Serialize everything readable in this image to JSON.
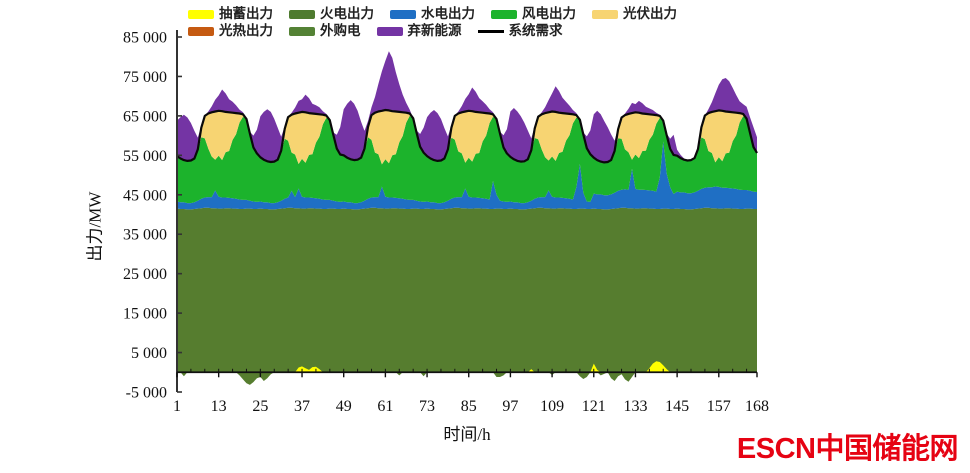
{
  "axis": {
    "y_title": "出力/MW",
    "x_title": "时间/h"
  },
  "logo": {
    "text": "ESCN中国储能网",
    "color": "#e60313"
  },
  "legend": {
    "rows": [
      [
        {
          "label": "抽蓄出力",
          "color": "#ffff00",
          "type": "box"
        },
        {
          "label": "火电出力",
          "color": "#4e7b2f",
          "type": "box"
        },
        {
          "label": "水电出力",
          "color": "#1f6fc4",
          "type": "box"
        },
        {
          "label": "风电出力",
          "color": "#1cb32c",
          "type": "box"
        },
        {
          "label": "光伏出力",
          "color": "#f7d472",
          "type": "box"
        }
      ],
      [
        {
          "label": "光热出力",
          "color": "#c55a11",
          "type": "box"
        },
        {
          "label": "外购电",
          "color": "#548235",
          "type": "box"
        },
        {
          "label": "弃新能源",
          "color": "#7434a4",
          "type": "box"
        },
        {
          "label": "系统需求",
          "color": "#000000",
          "type": "line"
        }
      ]
    ]
  },
  "chart_data": {
    "type": "area",
    "subtype": "stacked-area-hourly",
    "title": "",
    "xlabel": "时间/h",
    "ylabel": "出力/MW",
    "x_hours": "1 to 168 hourly (7 days)",
    "xlim": [
      1,
      168
    ],
    "ylim": [
      -5000,
      85000
    ],
    "grid": false,
    "legend_position": "top",
    "colors": {
      "thermal_purchased": "#567d2f",
      "hydro": "#1f6fc4",
      "wind": "#1cb32c",
      "pv": "#f7d472",
      "curtailed": "#7434a4",
      "pumped": "#ffff00",
      "demand_line": "#0a0a0a"
    },
    "y_ticks": [
      {
        "value": 85000,
        "label": "85 000"
      },
      {
        "value": 75000,
        "label": "75 000"
      },
      {
        "value": 65000,
        "label": "65 000"
      },
      {
        "value": 55000,
        "label": "55 000"
      },
      {
        "value": 45000,
        "label": "45 000"
      },
      {
        "value": 35000,
        "label": "35 000"
      },
      {
        "value": 25000,
        "label": "25 000"
      },
      {
        "value": 15000,
        "label": "15 000"
      },
      {
        "value": 5000,
        "label": "5 000"
      },
      {
        "value": -5000,
        "label": "-5 000"
      }
    ],
    "x_ticks": [
      {
        "value": 1,
        "label": "1"
      },
      {
        "value": 13,
        "label": "13"
      },
      {
        "value": 25,
        "label": "25"
      },
      {
        "value": 37,
        "label": "37"
      },
      {
        "value": 49,
        "label": "49"
      },
      {
        "value": 61,
        "label": "61"
      },
      {
        "value": 73,
        "label": "73"
      },
      {
        "value": 85,
        "label": "85"
      },
      {
        "value": 97,
        "label": "97"
      },
      {
        "value": 109,
        "label": "109"
      },
      {
        "value": 121,
        "label": "121"
      },
      {
        "value": 133,
        "label": "133"
      },
      {
        "value": 145,
        "label": "145"
      },
      {
        "value": 157,
        "label": "157"
      },
      {
        "value": 168,
        "label": "168"
      }
    ],
    "series_notes": "All values MW, hourly h1-h168. hydro_top & thermal_purchased_top are absolute stack heights; pv_output & curtailed_renewables are band thicknesses; wind band = demand - pv - hydro_top; pumped_storage signed (negative = pumping below zero axis).",
    "series": {
      "demand": [
        54800,
        54200,
        53800,
        53600,
        53700,
        54200,
        56500,
        62000,
        65000,
        65600,
        65900,
        66100,
        66300,
        66200,
        66000,
        65900,
        65800,
        65700,
        65600,
        65400,
        64200,
        60500,
        57000,
        55500,
        54500,
        53900,
        53500,
        53300,
        53400,
        53900,
        56200,
        61700,
        64700,
        65300,
        65600,
        65800,
        66000,
        65900,
        65700,
        65600,
        65500,
        65400,
        65300,
        65100,
        63900,
        60200,
        56700,
        55200,
        55000,
        54400,
        54000,
        53800,
        53900,
        54400,
        56700,
        62200,
        65200,
        65800,
        66100,
        66300,
        66500,
        66400,
        66200,
        66100,
        66000,
        65900,
        65800,
        65600,
        64400,
        60700,
        57200,
        55700,
        54800,
        54200,
        53800,
        53600,
        53700,
        54200,
        56500,
        62000,
        65000,
        65600,
        65900,
        66100,
        66300,
        66200,
        66000,
        65900,
        65800,
        65700,
        65600,
        65400,
        64200,
        60500,
        57000,
        55500,
        54600,
        54000,
        53600,
        53400,
        53500,
        54000,
        56300,
        61800,
        64800,
        65400,
        65700,
        65900,
        66100,
        66000,
        65800,
        65700,
        65600,
        65500,
        65400,
        65200,
        64000,
        60300,
        56800,
        55300,
        54400,
        53800,
        53400,
        53200,
        53300,
        53800,
        56100,
        61600,
        64600,
        65200,
        65500,
        65700,
        65900,
        65800,
        65600,
        65500,
        65400,
        65300,
        65200,
        65000,
        63800,
        60100,
        56600,
        55100,
        54900,
        54300,
        53900,
        53700,
        53800,
        54300,
        56600,
        62100,
        65100,
        65700,
        66000,
        66200,
        66400,
        66300,
        66100,
        66000,
        65900,
        65800,
        65700,
        65500,
        64300,
        60600,
        57100,
        55600
      ],
      "thermal_purchased_top": [
        41500,
        41400,
        41400,
        41300,
        41300,
        41400,
        41500,
        41600,
        41700,
        41700,
        41600,
        41600,
        41500,
        41500,
        41600,
        41600,
        41500,
        41500,
        41400,
        41400,
        41500,
        41500,
        41400,
        41400,
        41500,
        41400,
        41400,
        41300,
        41300,
        41400,
        41500,
        41600,
        41700,
        41700,
        41600,
        41600,
        41500,
        41500,
        41600,
        41600,
        41500,
        41500,
        41400,
        41400,
        41500,
        41500,
        41400,
        41400,
        41500,
        41400,
        41400,
        41300,
        41300,
        41400,
        41500,
        41600,
        41700,
        41700,
        41600,
        41600,
        41500,
        41500,
        41600,
        41600,
        41500,
        41500,
        41400,
        41400,
        41500,
        41500,
        41400,
        41400,
        41500,
        41400,
        41400,
        41300,
        41300,
        41400,
        41500,
        41600,
        41700,
        41700,
        41600,
        41600,
        41500,
        41500,
        41600,
        41600,
        41500,
        41500,
        41400,
        41400,
        41500,
        41500,
        41400,
        41400,
        41500,
        41400,
        41400,
        41300,
        41300,
        41400,
        41500,
        41600,
        41700,
        41700,
        41600,
        41600,
        41500,
        41500,
        41600,
        41600,
        41500,
        41500,
        41400,
        41400,
        41500,
        41500,
        41400,
        41400,
        41500,
        41400,
        41400,
        41300,
        41300,
        41400,
        41500,
        41600,
        41700,
        41700,
        41600,
        41600,
        41500,
        41500,
        41600,
        41600,
        41500,
        41500,
        41400,
        41400,
        41500,
        41500,
        41400,
        41400,
        41500,
        41400,
        41400,
        41300,
        41300,
        41400,
        41500,
        41600,
        41700,
        41700,
        41600,
        41600,
        41500,
        41500,
        41600,
        41600,
        41500,
        41500,
        41400,
        41400,
        41500,
        41500,
        41400,
        41400
      ],
      "hydro_top": [
        43300,
        43100,
        43100,
        42900,
        42900,
        43100,
        43500,
        44000,
        44300,
        44400,
        44400,
        46100,
        44500,
        44300,
        44300,
        44200,
        44100,
        44000,
        43800,
        43700,
        43700,
        43500,
        43300,
        43200,
        43300,
        43100,
        43100,
        42900,
        42900,
        43100,
        43500,
        44000,
        44300,
        46000,
        44400,
        46600,
        44500,
        44300,
        44300,
        44200,
        44100,
        44000,
        43800,
        43700,
        43700,
        43500,
        43300,
        43200,
        43300,
        43100,
        43100,
        42900,
        42900,
        43100,
        43500,
        44000,
        44300,
        44400,
        44400,
        47100,
        44500,
        44300,
        44300,
        44200,
        44100,
        44000,
        43800,
        43700,
        43700,
        43500,
        43300,
        43200,
        43300,
        43100,
        43100,
        42900,
        42900,
        43100,
        43500,
        44000,
        44300,
        44400,
        44400,
        46600,
        44500,
        44300,
        44300,
        44200,
        44100,
        44000,
        43800,
        48500,
        45000,
        43500,
        43300,
        43200,
        43300,
        43100,
        43100,
        42900,
        42900,
        43100,
        43500,
        44000,
        44300,
        44400,
        44400,
        46100,
        44500,
        44300,
        44300,
        44200,
        44100,
        44000,
        43800,
        47000,
        52800,
        45500,
        43300,
        43200,
        45300,
        45100,
        45100,
        44900,
        44900,
        45100,
        45500,
        46000,
        46300,
        46400,
        46300,
        51600,
        46500,
        46300,
        46300,
        46200,
        46100,
        46000,
        45800,
        49400,
        58500,
        50400,
        46900,
        45200,
        45800,
        45600,
        45600,
        45400,
        45400,
        45600,
        46000,
        46500,
        46800,
        46900,
        46900,
        47100,
        47000,
        46800,
        46800,
        46700,
        46600,
        46500,
        46300,
        46200,
        46200,
        46000,
        45800,
        45700
      ],
      "pv_output": [
        0,
        0,
        0,
        0,
        0,
        0,
        300,
        2400,
        5700,
        8900,
        11200,
        12200,
        11400,
        12400,
        10200,
        9800,
        6900,
        5400,
        2300,
        600,
        0,
        0,
        0,
        0,
        0,
        0,
        0,
        0,
        0,
        0,
        300,
        2500,
        6000,
        9600,
        10400,
        13000,
        11900,
        12800,
        10600,
        10300,
        7300,
        5700,
        2400,
        600,
        0,
        0,
        0,
        0,
        0,
        0,
        0,
        0,
        0,
        0,
        300,
        2600,
        6300,
        10100,
        10800,
        13600,
        12500,
        13400,
        11200,
        10800,
        7700,
        6000,
        2500,
        600,
        0,
        0,
        0,
        0,
        0,
        0,
        0,
        0,
        0,
        0,
        300,
        2500,
        6000,
        9600,
        10400,
        13000,
        11900,
        12800,
        10600,
        10300,
        7300,
        5700,
        2400,
        600,
        0,
        0,
        0,
        0,
        0,
        0,
        0,
        0,
        0,
        0,
        300,
        2400,
        5700,
        8900,
        11200,
        12200,
        11400,
        12400,
        10200,
        9800,
        6900,
        5400,
        2300,
        600,
        0,
        0,
        0,
        0,
        0,
        0,
        0,
        0,
        0,
        0,
        300,
        2300,
        5400,
        8700,
        9700,
        11800,
        10700,
        11500,
        9500,
        9300,
        6500,
        5100,
        2200,
        500,
        0,
        0,
        0,
        0,
        0,
        0,
        0,
        0,
        0,
        0,
        300,
        2500,
        6000,
        9600,
        10400,
        13000,
        11900,
        12800,
        10600,
        10300,
        7300,
        5700,
        2400,
        600,
        0,
        0,
        0,
        0
      ],
      "curtailed_renewables": [
        9000,
        10500,
        11500,
        11000,
        9500,
        7000,
        3000,
        500,
        0,
        500,
        1500,
        3000,
        3900,
        5500,
        4700,
        3300,
        2800,
        2000,
        1000,
        500,
        0,
        500,
        3000,
        6000,
        10400,
        12100,
        13200,
        12700,
        10900,
        8100,
        3500,
        600,
        0,
        500,
        1500,
        3000,
        3200,
        4500,
        3800,
        2500,
        2200,
        1800,
        900,
        400,
        0,
        600,
        3500,
        6900,
        11700,
        13700,
        15000,
        14300,
        12400,
        9100,
        4500,
        1500,
        2000,
        4000,
        7000,
        10000,
        12500,
        15000,
        13500,
        10000,
        7000,
        4500,
        2500,
        1000,
        0,
        600,
        3200,
        6300,
        9900,
        11600,
        12700,
        12100,
        10500,
        7700,
        3300,
        600,
        0,
        500,
        1600,
        3200,
        4200,
        6000,
        5100,
        3600,
        2900,
        2100,
        1100,
        500,
        0,
        500,
        3100,
        6100,
        11500,
        13000,
        12500,
        11500,
        9800,
        7300,
        3000,
        500,
        0,
        500,
        1500,
        3100,
        4600,
        6500,
        5500,
        3900,
        3000,
        2100,
        1100,
        500,
        0,
        500,
        3000,
        6000,
        11000,
        12500,
        12000,
        10500,
        8800,
        6500,
        2600,
        400,
        0,
        400,
        1300,
        2600,
        2100,
        3000,
        2600,
        1800,
        1500,
        1200,
        600,
        300,
        0,
        400,
        2600,
        5100,
        1500,
        800,
        300,
        0,
        0,
        300,
        0,
        0,
        0,
        1000,
        2500,
        4500,
        6500,
        8000,
        8500,
        7800,
        6200,
        4500,
        3000,
        2500,
        3000,
        4000,
        5000,
        4000
      ],
      "pumped_storage": [
        0,
        0,
        -1000,
        0,
        0,
        0,
        0,
        0,
        0,
        0,
        0,
        0,
        0,
        0,
        0,
        0,
        0,
        0,
        -800,
        -1800,
        -2800,
        -3200,
        -2500,
        -1500,
        -1200,
        -2200,
        -1500,
        -500,
        0,
        0,
        0,
        0,
        0,
        0,
        0,
        1200,
        1500,
        1000,
        600,
        1300,
        1400,
        800,
        0,
        0,
        0,
        0,
        0,
        0,
        0,
        0,
        0,
        0,
        0,
        0,
        0,
        0,
        0,
        0,
        0,
        0,
        0,
        0,
        0,
        0,
        -800,
        0,
        0,
        0,
        0,
        0,
        0,
        -1000,
        0,
        0,
        0,
        0,
        0,
        0,
        0,
        0,
        0,
        0,
        0,
        0,
        0,
        0,
        0,
        0,
        0,
        0,
        0,
        0,
        -1200,
        -1200,
        -800,
        0,
        0,
        0,
        0,
        0,
        0,
        0,
        800,
        0,
        0,
        0,
        0,
        0,
        -700,
        0,
        0,
        0,
        0,
        0,
        0,
        0,
        -1000,
        -1700,
        -1200,
        0,
        2200,
        600,
        -800,
        -400,
        0,
        -1500,
        -2200,
        -1000,
        -500,
        -1800,
        -2400,
        -1200,
        0,
        0,
        0,
        0,
        1000,
        2200,
        2800,
        2600,
        1800,
        800,
        0,
        0,
        0,
        0,
        0,
        0,
        0,
        0,
        0,
        0,
        0,
        0,
        0,
        0,
        0,
        0,
        0,
        0,
        0,
        0,
        0,
        0,
        0,
        0,
        0,
        0
      ]
    }
  }
}
